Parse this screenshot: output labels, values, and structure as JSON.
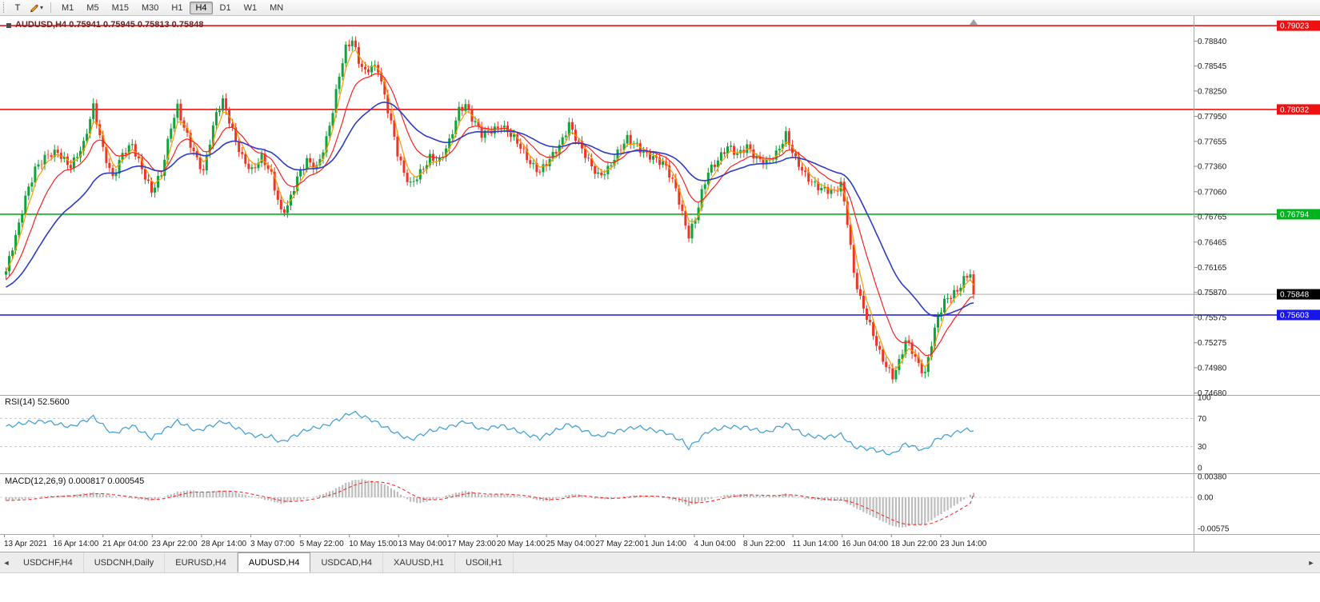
{
  "toolbar": {
    "text_tool_label": "T",
    "timeframes": [
      "M1",
      "M5",
      "M15",
      "M30",
      "H1",
      "H4",
      "D1",
      "W1",
      "MN"
    ],
    "active_timeframe": "H4"
  },
  "icons": {
    "dropdown_arrow": "▾",
    "tab_left_arrow": "◄",
    "tab_right_arrow": "►"
  },
  "chart": {
    "title": "AUDUSD,H4 0.75941 0.75945 0.75813 0.75848",
    "symbol": "AUDUSD",
    "timeframe": "H4",
    "open": "0.75941",
    "high": "0.75945",
    "low": "0.75813",
    "close": "0.75848",
    "hlines": [
      {
        "price": 0.79023,
        "label": "0.79023",
        "color": "#ee1111"
      },
      {
        "price": 0.78032,
        "label": "0.78032",
        "color": "#ee1111"
      },
      {
        "price": 0.76794,
        "label": "0.76794",
        "color": "#00b41e"
      },
      {
        "price": 0.75603,
        "label": "0.75603",
        "color": "#1616e8"
      }
    ],
    "bid": {
      "price": 0.75848,
      "label": "0.75848",
      "badge_color": "#000000"
    },
    "colors": {
      "up": "#0fa33c",
      "down": "#ee3424",
      "ma_fast": "#ff9a00",
      "ma_mid": "#ff2020",
      "ma_slow": "#2f3cc4",
      "bid_line": "#ababab"
    }
  },
  "rsi": {
    "label": "RSI(14) 52.5600",
    "current": 52.56,
    "scale_labels": [
      "100",
      "70",
      "30",
      "0"
    ],
    "levels": [
      70,
      30
    ],
    "color": "#46a3d8"
  },
  "macd": {
    "label": "MACD(12,26,9) 0.000817 0.000545",
    "macd_value": 0.000817,
    "signal_value": 0.000545,
    "scale_labels": [
      "0.00380",
      "0.00",
      "-0.00575"
    ],
    "histogram_color": "#bdbdbd",
    "signal_color": "#f23030"
  },
  "tabs": {
    "items": [
      "USDCHF,H4",
      "USDCNH,Daily",
      "EURUSD,H4",
      "AUDUSD,H4",
      "USDCAD,H4",
      "XAUUSD,H1",
      "USOil,H1"
    ],
    "active": "AUDUSD,H4"
  },
  "chart_data": {
    "type": "candlestick",
    "symbol": "AUDUSD",
    "timeframe": "H4",
    "bars": 300,
    "indicators": [
      "RSI(14)",
      "MACD(12,26,9)"
    ],
    "y_axis_labels": [
      "0.78840",
      "0.78545",
      "0.78250",
      "0.77950",
      "0.77655",
      "0.77360",
      "0.77060",
      "0.76765",
      "0.76465",
      "0.76165",
      "0.75870",
      "0.75575",
      "0.75275",
      "0.74980",
      "0.74680"
    ],
    "x_labels": [
      "13 Apr 2021",
      "16 Apr 14:00",
      "21 Apr 04:00",
      "23 Apr 22:00",
      "28 Apr 14:00",
      "3 May 07:00",
      "5 May 22:00",
      "10 May 15:00",
      "13 May 04:00",
      "17 May 23:00",
      "20 May 14:00",
      "25 May 04:00",
      "27 May 22:00",
      "1 Jun 14:00",
      "4 Jun 04:00",
      "8 Jun 22:00",
      "11 Jun 14:00",
      "16 Jun 04:00",
      "18 Jun 22:00",
      "23 Jun 14:00"
    ],
    "y_range_main": [
      0.74658,
      0.79137
    ],
    "rsi_range": [
      0,
      100
    ],
    "macd_range": [
      -0.00678,
      0.00428
    ],
    "hline_prices": [
      0.79023,
      0.78032,
      0.76794,
      0.75603
    ],
    "current": {
      "open": 0.75941,
      "high": 0.75945,
      "low": 0.75813,
      "close": 0.75848,
      "rsi": 52.56,
      "macd": 0.000817,
      "macd_signal": 0.000545
    },
    "price_path_anchors": [
      [
        0,
        0.7612
      ],
      [
        4,
        0.7665
      ],
      [
        6,
        0.77
      ],
      [
        9,
        0.7735
      ],
      [
        12,
        0.7745
      ],
      [
        16,
        0.7752
      ],
      [
        20,
        0.7738
      ],
      [
        24,
        0.776
      ],
      [
        27,
        0.7806
      ],
      [
        30,
        0.7758
      ],
      [
        33,
        0.7722
      ],
      [
        36,
        0.7748
      ],
      [
        39,
        0.7762
      ],
      [
        42,
        0.7735
      ],
      [
        45,
        0.7705
      ],
      [
        48,
        0.7725
      ],
      [
        51,
        0.7785
      ],
      [
        53,
        0.7808
      ],
      [
        55,
        0.7782
      ],
      [
        57,
        0.776
      ],
      [
        59,
        0.7742
      ],
      [
        61,
        0.773
      ],
      [
        63,
        0.7768
      ],
      [
        65,
        0.78
      ],
      [
        67,
        0.7812
      ],
      [
        69,
        0.7788
      ],
      [
        71,
        0.7765
      ],
      [
        73,
        0.7748
      ],
      [
        76,
        0.7732
      ],
      [
        79,
        0.7745
      ],
      [
        82,
        0.7725
      ],
      [
        85,
        0.7684
      ],
      [
        87,
        0.769
      ],
      [
        90,
        0.772
      ],
      [
        93,
        0.7742
      ],
      [
        96,
        0.7736
      ],
      [
        99,
        0.7768
      ],
      [
        101,
        0.78
      ],
      [
        103,
        0.7842
      ],
      [
        105,
        0.7876
      ],
      [
        107,
        0.7888
      ],
      [
        109,
        0.7862
      ],
      [
        111,
        0.7846
      ],
      [
        113,
        0.7852
      ],
      [
        115,
        0.785
      ],
      [
        117,
        0.782
      ],
      [
        119,
        0.779
      ],
      [
        121,
        0.7752
      ],
      [
        123,
        0.7726
      ],
      [
        125,
        0.7712
      ],
      [
        128,
        0.773
      ],
      [
        131,
        0.7748
      ],
      [
        134,
        0.774
      ],
      [
        137,
        0.7764
      ],
      [
        140,
        0.7805
      ],
      [
        142,
        0.781
      ],
      [
        144,
        0.7792
      ],
      [
        147,
        0.7772
      ],
      [
        150,
        0.778
      ],
      [
        153,
        0.7785
      ],
      [
        156,
        0.7772
      ],
      [
        159,
        0.7758
      ],
      [
        162,
        0.7742
      ],
      [
        165,
        0.773
      ],
      [
        168,
        0.7742
      ],
      [
        171,
        0.776
      ],
      [
        174,
        0.7788
      ],
      [
        177,
        0.7762
      ],
      [
        180,
        0.774
      ],
      [
        183,
        0.7726
      ],
      [
        186,
        0.7734
      ],
      [
        189,
        0.775
      ],
      [
        192,
        0.7768
      ],
      [
        195,
        0.7762
      ],
      [
        198,
        0.775
      ],
      [
        201,
        0.7742
      ],
      [
        204,
        0.7736
      ],
      [
        207,
        0.7712
      ],
      [
        209,
        0.768
      ],
      [
        211,
        0.7652
      ],
      [
        213,
        0.7672
      ],
      [
        215,
        0.7705
      ],
      [
        217,
        0.7732
      ],
      [
        220,
        0.7744
      ],
      [
        223,
        0.7757
      ],
      [
        226,
        0.775
      ],
      [
        229,
        0.7762
      ],
      [
        232,
        0.7744
      ],
      [
        235,
        0.7738
      ],
      [
        238,
        0.7752
      ],
      [
        241,
        0.7775
      ],
      [
        244,
        0.7742
      ],
      [
        247,
        0.7724
      ],
      [
        250,
        0.7716
      ],
      [
        253,
        0.7709
      ],
      [
        256,
        0.7703
      ],
      [
        258,
        0.7714
      ],
      [
        260,
        0.7672
      ],
      [
        262,
        0.7612
      ],
      [
        264,
        0.758
      ],
      [
        266,
        0.7556
      ],
      [
        268,
        0.7535
      ],
      [
        270,
        0.7515
      ],
      [
        272,
        0.7502
      ],
      [
        274,
        0.7489
      ],
      [
        276,
        0.7504
      ],
      [
        278,
        0.7528
      ],
      [
        280,
        0.7517
      ],
      [
        282,
        0.7502
      ],
      [
        284,
        0.7493
      ],
      [
        286,
        0.7528
      ],
      [
        288,
        0.7556
      ],
      [
        290,
        0.7574
      ],
      [
        292,
        0.7583
      ],
      [
        294,
        0.7591
      ],
      [
        296,
        0.7604
      ],
      [
        298,
        0.761
      ],
      [
        299,
        0.75848
      ]
    ],
    "rsi_anchors": [
      [
        0,
        58
      ],
      [
        6,
        64
      ],
      [
        12,
        66
      ],
      [
        20,
        58
      ],
      [
        27,
        72
      ],
      [
        33,
        48
      ],
      [
        39,
        60
      ],
      [
        45,
        42
      ],
      [
        53,
        66
      ],
      [
        59,
        52
      ],
      [
        67,
        66
      ],
      [
        76,
        46
      ],
      [
        82,
        44
      ],
      [
        85,
        36
      ],
      [
        93,
        54
      ],
      [
        99,
        60
      ],
      [
        107,
        79
      ],
      [
        113,
        68
      ],
      [
        121,
        48
      ],
      [
        125,
        40
      ],
      [
        131,
        52
      ],
      [
        137,
        58
      ],
      [
        142,
        66
      ],
      [
        147,
        54
      ],
      [
        153,
        60
      ],
      [
        162,
        46
      ],
      [
        165,
        42
      ],
      [
        174,
        62
      ],
      [
        183,
        44
      ],
      [
        189,
        52
      ],
      [
        195,
        58
      ],
      [
        204,
        50
      ],
      [
        209,
        38
      ],
      [
        211,
        28
      ],
      [
        217,
        52
      ],
      [
        223,
        58
      ],
      [
        229,
        57
      ],
      [
        235,
        50
      ],
      [
        241,
        62
      ],
      [
        247,
        46
      ],
      [
        253,
        43
      ],
      [
        258,
        47
      ],
      [
        262,
        30
      ],
      [
        268,
        26
      ],
      [
        272,
        21
      ],
      [
        274,
        19
      ],
      [
        278,
        34
      ],
      [
        282,
        27
      ],
      [
        284,
        25
      ],
      [
        288,
        42
      ],
      [
        292,
        47
      ],
      [
        296,
        54
      ],
      [
        299,
        52.56
      ]
    ],
    "macd_hist_anchors": [
      [
        0,
        -0.0006
      ],
      [
        6,
        -0.0003
      ],
      [
        12,
        0.0002
      ],
      [
        20,
        0.0004
      ],
      [
        27,
        0.0009
      ],
      [
        33,
        0.0002
      ],
      [
        39,
        -0.0002
      ],
      [
        45,
        -0.0007
      ],
      [
        53,
        0.001
      ],
      [
        57,
        0.0013
      ],
      [
        61,
        0.0009
      ],
      [
        67,
        0.0013
      ],
      [
        71,
        0.0009
      ],
      [
        76,
        0.0001
      ],
      [
        82,
        -0.0007
      ],
      [
        85,
        -0.0012
      ],
      [
        90,
        -0.0006
      ],
      [
        96,
        0.0002
      ],
      [
        101,
        0.0013
      ],
      [
        105,
        0.0026
      ],
      [
        107,
        0.0031
      ],
      [
        110,
        0.0033
      ],
      [
        113,
        0.003
      ],
      [
        117,
        0.0024
      ],
      [
        121,
        0.001
      ],
      [
        125,
        -0.0008
      ],
      [
        128,
        -0.0011
      ],
      [
        131,
        -0.0006
      ],
      [
        134,
        -0.0002
      ],
      [
        137,
        0.0005
      ],
      [
        142,
        0.0012
      ],
      [
        144,
        0.001
      ],
      [
        147,
        0.0004
      ],
      [
        153,
        0.0006
      ],
      [
        159,
        0.0002
      ],
      [
        165,
        -0.0006
      ],
      [
        168,
        -0.0007
      ],
      [
        174,
        0.0005
      ],
      [
        177,
        0.0006
      ],
      [
        180,
        -0.0001
      ],
      [
        186,
        -0.0004
      ],
      [
        192,
        0.0002
      ],
      [
        195,
        0.0004
      ],
      [
        201,
        0.0001
      ],
      [
        204,
        -0.0002
      ],
      [
        209,
        -0.001
      ],
      [
        211,
        -0.0016
      ],
      [
        215,
        -0.0008
      ],
      [
        220,
        0.0001
      ],
      [
        223,
        0.0005
      ],
      [
        229,
        0.0006
      ],
      [
        232,
        0.0003
      ],
      [
        238,
        0.0003
      ],
      [
        241,
        0.0007
      ],
      [
        244,
        0.0002
      ],
      [
        247,
        -0.0003
      ],
      [
        253,
        -0.0006
      ],
      [
        256,
        -0.0007
      ],
      [
        258,
        -0.0005
      ],
      [
        262,
        -0.0018
      ],
      [
        266,
        -0.003
      ],
      [
        270,
        -0.0042
      ],
      [
        274,
        -0.0053
      ],
      [
        277,
        -0.0056
      ],
      [
        280,
        -0.0051
      ],
      [
        284,
        -0.005
      ],
      [
        288,
        -0.0034
      ],
      [
        292,
        -0.002
      ],
      [
        296,
        -0.0004
      ],
      [
        299,
        0.000817
      ]
    ]
  }
}
